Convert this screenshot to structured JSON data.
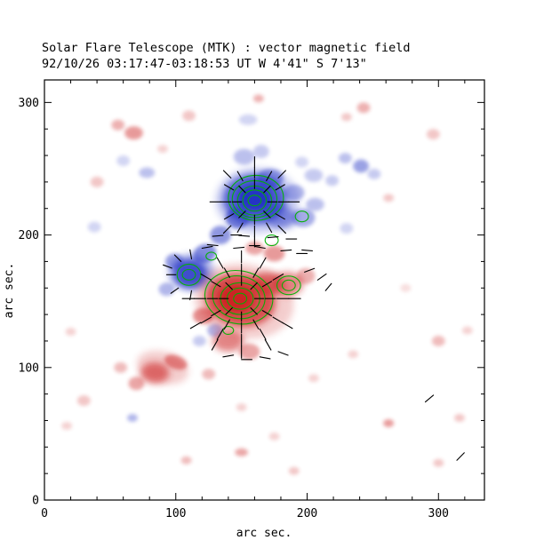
{
  "figure": {
    "title": "Solar Flare Telescope (MTK) : vector magnetic field",
    "subtitle": "92/10/26  03:17:47-03:18:53 UT    W 4'41\"  S 7'13\""
  },
  "chart_data": {
    "type": "heatmap",
    "subtype": "magnetogram-with-vector-field",
    "title": "Solar Flare Telescope (MTK) : vector magnetic field",
    "subtitle": "92/10/26  03:17:47-03:18:53 UT    W 4'41\"  S 7'13\"",
    "xlabel": "arc sec.",
    "ylabel": "arc sec.",
    "xlim": [
      0,
      335
    ],
    "ylim": [
      0,
      317
    ],
    "xticks": [
      0,
      100,
      200,
      300
    ],
    "yticks": [
      0,
      100,
      200,
      300
    ],
    "minor_tick_step": 20,
    "colors": {
      "positive": "#cc2222",
      "negative": "#2433c4",
      "contour": "#00b100",
      "vector": "#000000",
      "frame": "#000000"
    },
    "blobs": [
      [
        162,
        226,
        32,
        25,
        0,
        "B",
        0.22
      ],
      [
        160,
        227,
        24,
        19,
        0,
        "B",
        0.72
      ],
      [
        160,
        228,
        13,
        10,
        0,
        "B",
        0.95
      ],
      [
        179,
        214,
        13,
        9,
        -15,
        "B",
        0.5
      ],
      [
        197,
        213,
        9,
        7,
        0,
        "B",
        0.4
      ],
      [
        206,
        223,
        7,
        5,
        0,
        "B",
        0.3
      ],
      [
        172,
        243,
        10,
        7,
        0,
        "B",
        0.45
      ],
      [
        190,
        232,
        8,
        6,
        0,
        "B",
        0.35
      ],
      [
        147,
        213,
        9,
        8,
        0,
        "B",
        0.55
      ],
      [
        134,
        200,
        8,
        7,
        0,
        "B",
        0.5
      ],
      [
        122,
        186,
        9,
        7,
        20,
        "B",
        0.55
      ],
      [
        112,
        172,
        18,
        14,
        0,
        "B",
        0.3
      ],
      [
        111,
        171,
        13,
        11,
        0,
        "B",
        0.8
      ],
      [
        99,
        180,
        7,
        6,
        0,
        "B",
        0.45
      ],
      [
        93,
        159,
        6,
        5,
        0,
        "B",
        0.35
      ],
      [
        152,
        259,
        8,
        6,
        0,
        "B",
        0.3
      ],
      [
        165,
        263,
        6,
        5,
        0,
        "B",
        0.25
      ],
      [
        155,
        287,
        7,
        4,
        0,
        "B",
        0.2
      ],
      [
        241,
        252,
        6,
        5,
        0,
        "B",
        0.45
      ],
      [
        229,
        258,
        5,
        4,
        0,
        "B",
        0.3
      ],
      [
        251,
        246,
        5,
        4,
        0,
        "B",
        0.25
      ],
      [
        219,
        241,
        5,
        4,
        0,
        "B",
        0.25
      ],
      [
        205,
        245,
        7,
        5,
        0,
        "B",
        0.25
      ],
      [
        196,
        255,
        5,
        4,
        0,
        "B",
        0.2
      ],
      [
        230,
        205,
        5,
        4,
        0,
        "B",
        0.2
      ],
      [
        78,
        247,
        6,
        4,
        0,
        "B",
        0.3
      ],
      [
        60,
        256,
        5,
        4,
        0,
        "B",
        0.2
      ],
      [
        67,
        62,
        4,
        3,
        0,
        "B",
        0.35
      ],
      [
        38,
        206,
        5,
        4,
        0,
        "B",
        0.2
      ],
      [
        130,
        128,
        6,
        5,
        0,
        "B",
        0.35
      ],
      [
        118,
        120,
        5,
        4,
        0,
        "B",
        0.25
      ],
      [
        152,
        150,
        38,
        28,
        -10,
        "R",
        0.22
      ],
      [
        149,
        151,
        27,
        20,
        -10,
        "R",
        0.72
      ],
      [
        146,
        152,
        14,
        11,
        0,
        "R",
        0.95
      ],
      [
        170,
        163,
        12,
        9,
        0,
        "R",
        0.6
      ],
      [
        185,
        163,
        12,
        9,
        0,
        "R",
        0.55
      ],
      [
        199,
        169,
        7,
        6,
        0,
        "R",
        0.35
      ],
      [
        140,
        120,
        12,
        8,
        0,
        "R",
        0.55
      ],
      [
        156,
        112,
        8,
        6,
        0,
        "R",
        0.4
      ],
      [
        121,
        139,
        8,
        6,
        0,
        "R",
        0.5
      ],
      [
        175,
        186,
        8,
        6,
        0,
        "R",
        0.45
      ],
      [
        160,
        190,
        7,
        5,
        0,
        "R",
        0.4
      ],
      [
        90,
        100,
        20,
        12,
        -15,
        "R",
        0.22
      ],
      [
        84,
        96,
        11,
        8,
        0,
        "R",
        0.6
      ],
      [
        100,
        104,
        9,
        5,
        -20,
        "R",
        0.5
      ],
      [
        70,
        88,
        6,
        5,
        0,
        "R",
        0.4
      ],
      [
        58,
        100,
        5,
        4,
        0,
        "R",
        0.3
      ],
      [
        125,
        95,
        5,
        4,
        0,
        "R",
        0.3
      ],
      [
        68,
        277,
        7,
        5,
        0,
        "R",
        0.45
      ],
      [
        56,
        283,
        5,
        4,
        0,
        "R",
        0.35
      ],
      [
        110,
        290,
        5,
        4,
        0,
        "R",
        0.25
      ],
      [
        163,
        303,
        4,
        3,
        0,
        "R",
        0.35
      ],
      [
        243,
        296,
        5,
        4,
        0,
        "R",
        0.35
      ],
      [
        230,
        289,
        4,
        3,
        0,
        "R",
        0.25
      ],
      [
        296,
        276,
        5,
        4,
        0,
        "R",
        0.25
      ],
      [
        262,
        228,
        4,
        3,
        0,
        "R",
        0.25
      ],
      [
        300,
        120,
        5,
        4,
        0,
        "R",
        0.3
      ],
      [
        262,
        58,
        4,
        3,
        0,
        "R",
        0.45
      ],
      [
        316,
        62,
        4,
        3,
        0,
        "R",
        0.25
      ],
      [
        322,
        128,
        4,
        3,
        0,
        "R",
        0.2
      ],
      [
        150,
        36,
        5,
        3,
        0,
        "R",
        0.4
      ],
      [
        108,
        30,
        4,
        3,
        0,
        "R",
        0.3
      ],
      [
        190,
        22,
        4,
        3,
        0,
        "R",
        0.25
      ],
      [
        300,
        28,
        4,
        3,
        0,
        "R",
        0.25
      ],
      [
        30,
        75,
        5,
        4,
        0,
        "R",
        0.25
      ],
      [
        17,
        56,
        4,
        3,
        0,
        "R",
        0.2
      ],
      [
        20,
        127,
        4,
        3,
        0,
        "R",
        0.2
      ],
      [
        40,
        240,
        5,
        4,
        0,
        "R",
        0.25
      ],
      [
        90,
        265,
        4,
        3,
        0,
        "R",
        0.2
      ],
      [
        235,
        110,
        4,
        3,
        0,
        "R",
        0.2
      ],
      [
        275,
        160,
        4,
        3,
        0,
        "R",
        0.15
      ],
      [
        205,
        92,
        4,
        3,
        0,
        "R",
        0.2
      ],
      [
        150,
        70,
        4,
        3,
        0,
        "R",
        0.2
      ],
      [
        175,
        48,
        4,
        3,
        0,
        "R",
        0.2
      ]
    ],
    "contours": [
      [
        160,
        226,
        5,
        4,
        0
      ],
      [
        160,
        226,
        9,
        8,
        0
      ],
      [
        160,
        226,
        13,
        11,
        0
      ],
      [
        160,
        227,
        17,
        14,
        0
      ],
      [
        161,
        228,
        21,
        17,
        0
      ],
      [
        149,
        152,
        5,
        4,
        0
      ],
      [
        149,
        152,
        10,
        8,
        0
      ],
      [
        149,
        152,
        15,
        12,
        0
      ],
      [
        148,
        153,
        20,
        16,
        -10
      ],
      [
        148,
        153,
        26,
        20,
        -10
      ],
      [
        110,
        170,
        5,
        4,
        0
      ],
      [
        110,
        170,
        9,
        8,
        0
      ],
      [
        186,
        162,
        5,
        4,
        0
      ],
      [
        186,
        162,
        9,
        7,
        0
      ],
      [
        127,
        184,
        4,
        3,
        0
      ],
      [
        173,
        196,
        5,
        4,
        0
      ],
      [
        196,
        214,
        5,
        4,
        0
      ],
      [
        140,
        128,
        4,
        3,
        0
      ]
    ],
    "vectors": [
      [
        170,
        225,
        0,
        7
      ],
      [
        167,
        232,
        45,
        7
      ],
      [
        160,
        235,
        90,
        7
      ],
      [
        153,
        232,
        135,
        7
      ],
      [
        150,
        225,
        180,
        7
      ],
      [
        153,
        218,
        225,
        7
      ],
      [
        160,
        215,
        270,
        7
      ],
      [
        167,
        218,
        315,
        7
      ],
      [
        178,
        225,
        0,
        8
      ],
      [
        176,
        234,
        30,
        8
      ],
      [
        169,
        241,
        60,
        8
      ],
      [
        160,
        243,
        90,
        8
      ],
      [
        151,
        241,
        120,
        8
      ],
      [
        144,
        234,
        150,
        8
      ],
      [
        142,
        225,
        180,
        8
      ],
      [
        144,
        216,
        210,
        8
      ],
      [
        151,
        209,
        240,
        8
      ],
      [
        160,
        207,
        270,
        8
      ],
      [
        169,
        209,
        300,
        8
      ],
      [
        176,
        216,
        330,
        8
      ],
      [
        186,
        225,
        0,
        8
      ],
      [
        178,
        243,
        45,
        8
      ],
      [
        160,
        251,
        90,
        8
      ],
      [
        142,
        243,
        135,
        8
      ],
      [
        134,
        225,
        180,
        8
      ],
      [
        142,
        207,
        225,
        8
      ],
      [
        160,
        199,
        270,
        8
      ],
      [
        178,
        207,
        315,
        8
      ],
      [
        160,
        152,
        0,
        7
      ],
      [
        157,
        159,
        45,
        7
      ],
      [
        150,
        162,
        90,
        7
      ],
      [
        143,
        159,
        135,
        7
      ],
      [
        140,
        152,
        180,
        7
      ],
      [
        143,
        145,
        225,
        7
      ],
      [
        150,
        142,
        270,
        7
      ],
      [
        157,
        145,
        315,
        7
      ],
      [
        168,
        152,
        0,
        8
      ],
      [
        166,
        161,
        30,
        8
      ],
      [
        159,
        168,
        60,
        8
      ],
      [
        150,
        170,
        90,
        8
      ],
      [
        141,
        168,
        120,
        8
      ],
      [
        134,
        161,
        150,
        8
      ],
      [
        132,
        152,
        180,
        8
      ],
      [
        134,
        143,
        210,
        8
      ],
      [
        141,
        136,
        240,
        8
      ],
      [
        150,
        134,
        270,
        8
      ],
      [
        159,
        136,
        300,
        8
      ],
      [
        166,
        143,
        330,
        8
      ],
      [
        177,
        152,
        0,
        9
      ],
      [
        174,
        166,
        30,
        9
      ],
      [
        164,
        175,
        60,
        9
      ],
      [
        150,
        179,
        90,
        9
      ],
      [
        136,
        175,
        120,
        9
      ],
      [
        127,
        166,
        150,
        9
      ],
      [
        123,
        152,
        180,
        9
      ],
      [
        127,
        138,
        210,
        9
      ],
      [
        136,
        129,
        240,
        9
      ],
      [
        150,
        125,
        270,
        9
      ],
      [
        164,
        129,
        300,
        9
      ],
      [
        174,
        138,
        330,
        9
      ],
      [
        114,
        152,
        180,
        9
      ],
      [
        119,
        134,
        210,
        9
      ],
      [
        132,
        121,
        240,
        9
      ],
      [
        150,
        116,
        270,
        9
      ],
      [
        168,
        121,
        300,
        9
      ],
      [
        181,
        134,
        330,
        9
      ],
      [
        186,
        152,
        0,
        9
      ],
      [
        120,
        190,
        10,
        8
      ],
      [
        132,
        192,
        175,
        8
      ],
      [
        144,
        190,
        5,
        8
      ],
      [
        156,
        192,
        0,
        8
      ],
      [
        168,
        190,
        170,
        8
      ],
      [
        180,
        188,
        5,
        8
      ],
      [
        192,
        186,
        0,
        8
      ],
      [
        204,
        188,
        175,
        8
      ],
      [
        128,
        199,
        5,
        8
      ],
      [
        142,
        200,
        0,
        8
      ],
      [
        156,
        199,
        175,
        8
      ],
      [
        170,
        198,
        5,
        8
      ],
      [
        184,
        197,
        0,
        8
      ],
      [
        100,
        170,
        180,
        7
      ],
      [
        104,
        180,
        135,
        7
      ],
      [
        112,
        182,
        100,
        7
      ],
      [
        102,
        160,
        215,
        7
      ],
      [
        112,
        158,
        260,
        7
      ],
      [
        97,
        175,
        160,
        7
      ],
      [
        136,
        108,
        10,
        8
      ],
      [
        150,
        106,
        0,
        8
      ],
      [
        164,
        108,
        350,
        8
      ],
      [
        178,
        112,
        340,
        8
      ],
      [
        198,
        172,
        20,
        8
      ],
      [
        208,
        166,
        35,
        8
      ],
      [
        214,
        158,
        50,
        7
      ],
      [
        290,
        74,
        40,
        8
      ],
      [
        314,
        30,
        45,
        8
      ]
    ]
  }
}
